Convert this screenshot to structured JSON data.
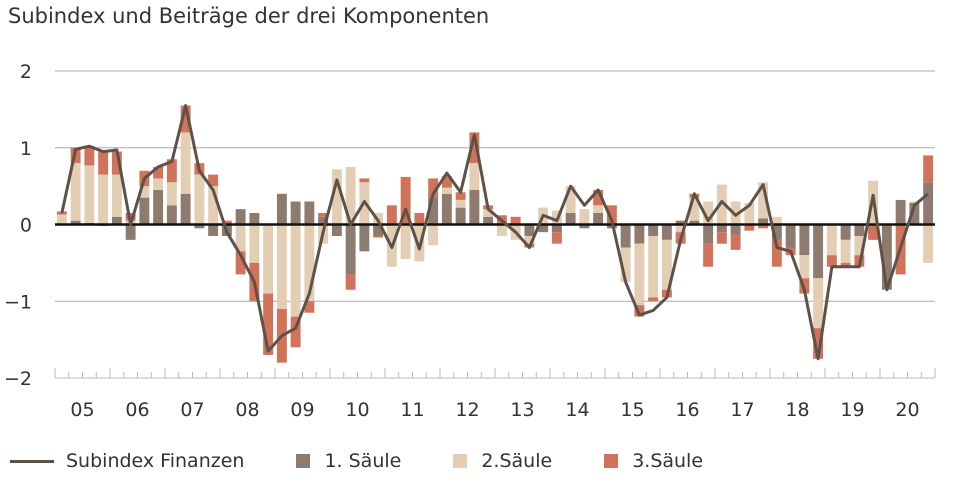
{
  "chart_data": {
    "type": "bar",
    "title": "Subindex und Beiträge der drei Komponenten",
    "ylim": [
      -2,
      2
    ],
    "yticks": [
      2,
      1,
      0,
      -1,
      -2
    ],
    "grid": true,
    "legend_placement": "bottom",
    "year_labels": [
      "05",
      "06",
      "07",
      "08",
      "09",
      "10",
      "11",
      "12",
      "13",
      "14",
      "15",
      "16",
      "17",
      "18",
      "19",
      "20"
    ],
    "quarters_per_year": 4,
    "series": [
      {
        "name": "1. Säule",
        "kind": "stacked-bar",
        "color": "#8c7b6e",
        "values": [
          0,
          0.05,
          0.02,
          -0.02,
          0.1,
          -0.2,
          0.35,
          0.45,
          0.25,
          0.4,
          -0.05,
          -0.15,
          -0.15,
          0.2,
          0.15,
          0,
          0.4,
          0.3,
          0.3,
          0.1,
          -0.15,
          -0.65,
          -0.35,
          -0.15,
          0,
          0,
          0,
          0.35,
          0.4,
          0.22,
          0.45,
          0.1,
          0,
          0,
          -0.15,
          -0.1,
          -0.1,
          0.15,
          -0.05,
          0.15,
          -0.05,
          -0.3,
          -0.25,
          -0.15,
          -0.2,
          0.05,
          0.05,
          -0.25,
          -0.1,
          -0.13,
          0,
          0.08,
          -0.2,
          -0.3,
          -0.4,
          -0.7,
          0,
          -0.2,
          -0.15,
          0,
          -0.85,
          0.32,
          0.28,
          0.55
        ]
      },
      {
        "name": "2.Säule",
        "kind": "stacked-bar",
        "color": "#e3ceb4",
        "values": [
          0.13,
          0.75,
          0.75,
          0.65,
          0.55,
          0.05,
          0.15,
          0.15,
          0.3,
          0.8,
          0.65,
          0.5,
          0,
          -0.35,
          -0.5,
          -0.9,
          -1.1,
          -1.2,
          -1.0,
          -0.25,
          0.72,
          0.75,
          0.55,
          0.15,
          -0.55,
          -0.45,
          -0.48,
          -0.27,
          0.08,
          0.1,
          0.35,
          0.1,
          -0.15,
          -0.2,
          -0.1,
          0.22,
          0.18,
          0.35,
          0.2,
          0.1,
          0,
          -0.45,
          -0.8,
          -0.8,
          -0.65,
          -0.1,
          0.3,
          0.3,
          0.52,
          0.3,
          0.28,
          0.47,
          0.1,
          0,
          -0.3,
          -0.65,
          -0.4,
          -0.3,
          -0.25,
          0.57,
          0,
          0,
          0.02,
          -0.5
        ]
      },
      {
        "name": "3.Säule",
        "kind": "stacked-bar",
        "color": "#d0735a",
        "values": [
          0.04,
          0.2,
          0.25,
          0.3,
          0.3,
          0.1,
          0.2,
          0.15,
          0.3,
          0.35,
          0.15,
          0.15,
          0.05,
          -0.3,
          -0.5,
          -0.8,
          -0.7,
          -0.4,
          -0.15,
          0.05,
          0,
          -0.2,
          0.05,
          -0.02,
          0.25,
          0.62,
          0.15,
          0.25,
          0.15,
          0.1,
          0.4,
          0.05,
          0.12,
          0.1,
          -0.05,
          0,
          -0.15,
          0,
          0,
          0.2,
          0.25,
          0,
          -0.15,
          -0.05,
          -0.1,
          -0.15,
          0.05,
          -0.3,
          -0.15,
          -0.2,
          -0.08,
          -0.05,
          -0.35,
          -0.1,
          -0.2,
          -0.4,
          -0.15,
          -0.05,
          -0.15,
          -0.2,
          0,
          -0.65,
          0,
          0.35
        ]
      },
      {
        "name": "Subindex Finanzen",
        "kind": "line",
        "color": "#5e5148",
        "values": [
          0.15,
          0.98,
          1.02,
          0.95,
          0.97,
          0,
          0.6,
          0.75,
          0.82,
          1.55,
          0.7,
          0.45,
          -0.1,
          -0.4,
          -0.75,
          -1.65,
          -1.45,
          -1.35,
          -0.9,
          -0.1,
          0.58,
          0,
          0.3,
          0.05,
          -0.3,
          0.2,
          -0.32,
          0.4,
          0.67,
          0.42,
          1.17,
          0.2,
          0.05,
          -0.1,
          -0.3,
          0.12,
          0.05,
          0.5,
          0.25,
          0.45,
          0.05,
          -0.75,
          -1.18,
          -1.12,
          -0.95,
          -0.2,
          0.4,
          0.05,
          0.3,
          0.12,
          0.25,
          0.52,
          -0.3,
          -0.35,
          -0.85,
          -1.75,
          -0.55,
          -0.55,
          -0.55,
          0.38,
          -0.85,
          -0.3,
          0.25,
          0.4
        ]
      }
    ]
  }
}
